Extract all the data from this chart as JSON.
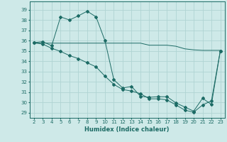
{
  "xlabel": "Humidex (Indice chaleur)",
  "xlim": [
    1.5,
    23.5
  ],
  "ylim": [
    28.5,
    39.8
  ],
  "xticks": [
    2,
    3,
    4,
    5,
    6,
    7,
    8,
    9,
    10,
    11,
    12,
    13,
    14,
    15,
    16,
    17,
    18,
    19,
    20,
    21,
    22,
    23
  ],
  "yticks": [
    29,
    30,
    31,
    32,
    33,
    34,
    35,
    36,
    37,
    38,
    39
  ],
  "background_color": "#cee9e8",
  "grid_color": "#afd4d3",
  "line_color": "#1c6b65",
  "series": [
    {
      "x": [
        2,
        3,
        4,
        5,
        6,
        7,
        8,
        9,
        10,
        11,
        12,
        13,
        14,
        15,
        16,
        17,
        18,
        19,
        20,
        21,
        22,
        23
      ],
      "y": [
        35.8,
        35.9,
        35.5,
        38.3,
        38.0,
        38.4,
        38.85,
        38.3,
        36.0,
        32.2,
        31.4,
        31.55,
        30.6,
        30.5,
        30.55,
        30.55,
        29.95,
        29.55,
        29.15,
        30.4,
        29.8,
        35.0
      ],
      "marker": "D",
      "marker_size": 2.0
    },
    {
      "x": [
        2,
        3,
        4,
        5,
        6,
        7,
        8,
        9,
        10,
        11,
        12,
        13,
        14,
        15,
        16,
        17,
        18,
        19,
        20,
        21,
        22,
        23
      ],
      "y": [
        35.75,
        35.75,
        35.75,
        35.75,
        35.75,
        35.75,
        35.75,
        35.75,
        35.75,
        35.75,
        35.75,
        35.75,
        35.75,
        35.55,
        35.55,
        35.55,
        35.45,
        35.2,
        35.1,
        35.05,
        35.05,
        35.05
      ],
      "marker": null,
      "marker_size": 0
    },
    {
      "x": [
        2,
        3,
        4,
        5,
        6,
        7,
        8,
        9,
        10,
        11,
        12,
        13,
        14,
        15,
        16,
        17,
        18,
        19,
        20,
        21,
        22,
        23
      ],
      "y": [
        35.8,
        35.65,
        35.25,
        34.95,
        34.55,
        34.25,
        33.85,
        33.45,
        32.55,
        31.75,
        31.25,
        31.1,
        30.85,
        30.35,
        30.35,
        30.25,
        29.75,
        29.25,
        29.05,
        29.75,
        30.15,
        35.0
      ],
      "marker": "D",
      "marker_size": 2.0
    }
  ]
}
